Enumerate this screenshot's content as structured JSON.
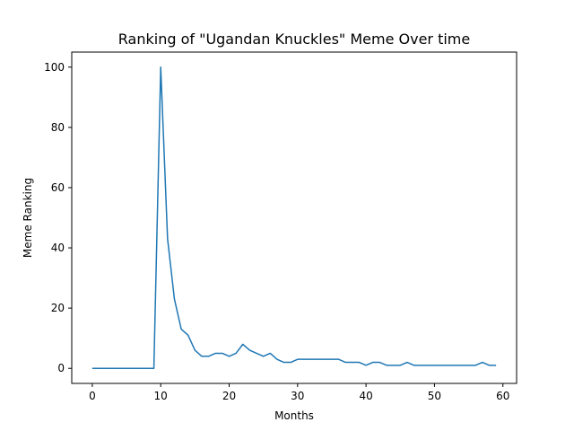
{
  "chart_data": {
    "type": "line",
    "title": "Ranking of \"Ugandan Knuckles\" Meme Over time",
    "xlabel": "Months",
    "ylabel": "Meme Ranking",
    "xlim": [
      -3,
      62
    ],
    "ylim": [
      -5,
      105
    ],
    "xticks": [
      0,
      10,
      20,
      30,
      40,
      50,
      60
    ],
    "yticks": [
      0,
      20,
      40,
      60,
      80,
      100
    ],
    "grid": false,
    "line_color": "#1f77b4",
    "series": [
      {
        "x": [
          0,
          1,
          2,
          3,
          4,
          5,
          6,
          7,
          8,
          9,
          10,
          11,
          12,
          13,
          14,
          15,
          16,
          17,
          18,
          19,
          20,
          21,
          22,
          23,
          24,
          25,
          26,
          27,
          28,
          29,
          30,
          31,
          32,
          33,
          34,
          35,
          36,
          37,
          38,
          39,
          40,
          41,
          42,
          43,
          44,
          45,
          46,
          47,
          48,
          49,
          50,
          51,
          52,
          53,
          54,
          55,
          56,
          57,
          58,
          59
        ],
        "values": [
          0,
          0,
          0,
          0,
          0,
          0,
          0,
          0,
          0,
          0,
          100,
          43,
          23,
          13,
          11,
          6,
          4,
          4,
          5,
          5,
          4,
          5,
          8,
          6,
          5,
          4,
          5,
          3,
          2,
          2,
          3,
          3,
          3,
          3,
          3,
          3,
          3,
          2,
          2,
          2,
          1,
          2,
          2,
          1,
          1,
          1,
          2,
          1,
          1,
          1,
          1,
          1,
          1,
          1,
          1,
          1,
          1,
          2,
          1,
          1
        ]
      }
    ]
  }
}
